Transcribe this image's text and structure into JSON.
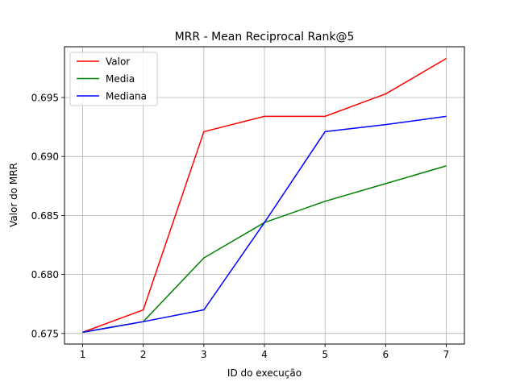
{
  "chart_data": {
    "type": "line",
    "title": "MRR - Mean Reciprocal Rank@5",
    "xlabel": "ID do execução",
    "ylabel": "Valor do MRR",
    "x": [
      1,
      2,
      3,
      4,
      5,
      6,
      7
    ],
    "xlim": [
      0.7,
      7.3
    ],
    "ylim": [
      0.6741,
      0.6993
    ],
    "xticks": [
      1,
      2,
      3,
      4,
      5,
      6,
      7
    ],
    "yticks": [
      0.675,
      0.68,
      0.685,
      0.69,
      0.695
    ],
    "ytick_labels": [
      "0.675",
      "0.680",
      "0.685",
      "0.690",
      "0.695"
    ],
    "grid": true,
    "legend_position": "top-left",
    "series": [
      {
        "name": "Valor",
        "color": "#ff0000",
        "values": [
          0.6751,
          0.677,
          0.6921,
          0.6934,
          0.6934,
          0.6953,
          0.6983
        ]
      },
      {
        "name": "Media",
        "color": "#008000",
        "values": [
          0.6751,
          0.676,
          0.6814,
          0.6844,
          0.6862,
          0.6877,
          0.6892
        ]
      },
      {
        "name": "Mediana",
        "color": "#0000ff",
        "values": [
          0.6751,
          0.676,
          0.677,
          0.6844,
          0.6921,
          0.6927,
          0.6934
        ]
      }
    ]
  }
}
